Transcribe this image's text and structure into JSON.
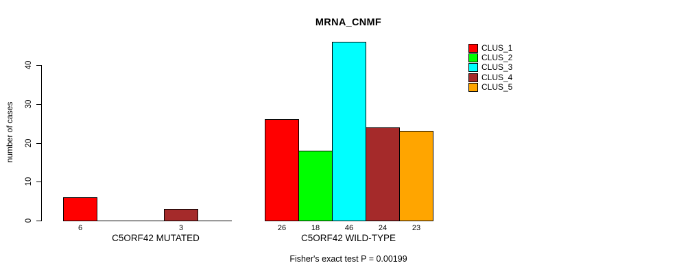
{
  "title": "MRNA_CNMF",
  "chart_data": {
    "type": "bar",
    "title": "MRNA_CNMF",
    "xlabel_groups": [
      "C5ORF42 MUTATED",
      "C5ORF42 WILD-TYPE"
    ],
    "ylabel": "number of cases",
    "ylim": [
      0,
      40
    ],
    "yticks": [
      0,
      10,
      20,
      30,
      40
    ],
    "grid": false,
    "legend_position": "top-right",
    "bar_value_labels_shown": true,
    "series": [
      {
        "name": "CLUS_1",
        "color": "#ff0000"
      },
      {
        "name": "CLUS_2",
        "color": "#00ff00"
      },
      {
        "name": "CLUS_3",
        "color": "#00ffff"
      },
      {
        "name": "CLUS_4",
        "color": "#a52a2a"
      },
      {
        "name": "CLUS_5",
        "color": "#ffa500"
      }
    ],
    "groups": [
      {
        "label": "C5ORF42 MUTATED",
        "values": [
          6,
          0,
          0,
          3,
          0
        ]
      },
      {
        "label": "C5ORF42 WILD-TYPE",
        "values": [
          26,
          18,
          46,
          24,
          23
        ]
      }
    ],
    "annotation": "Fisher's exact test P = 0.00199"
  }
}
